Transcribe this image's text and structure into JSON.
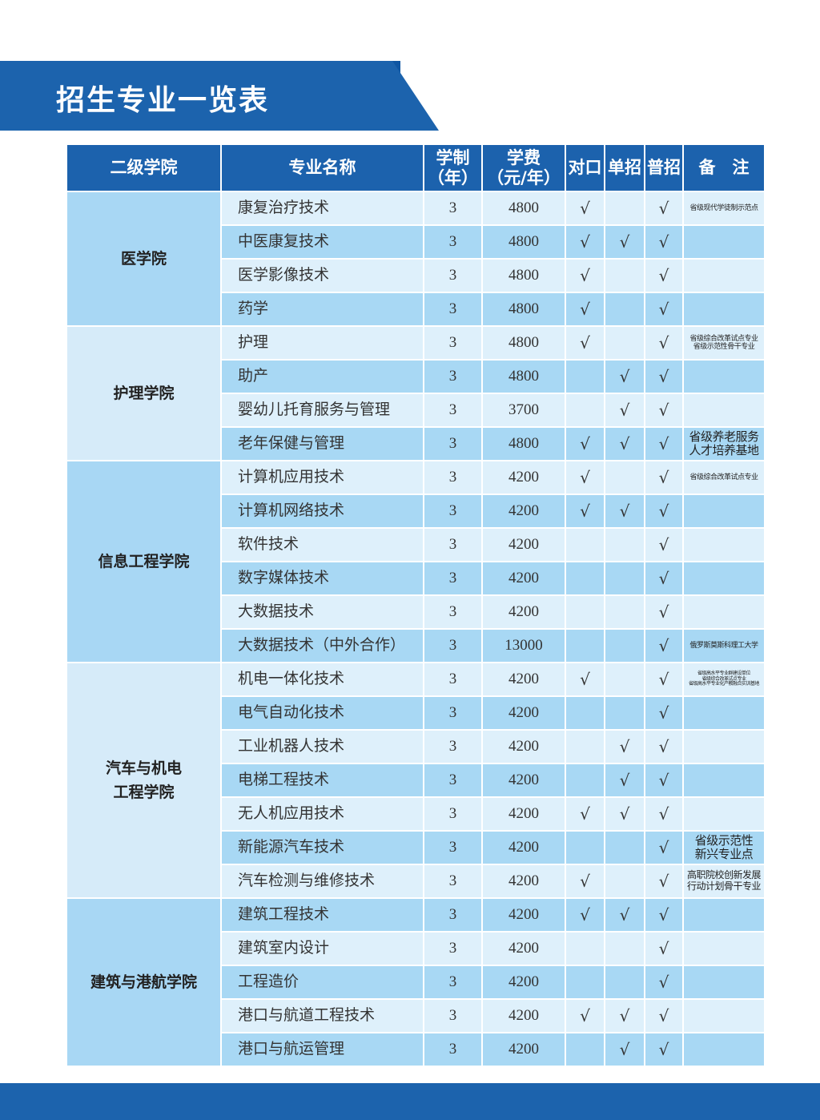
{
  "header": {
    "title": "招生专业一览表"
  },
  "table": {
    "columns": [
      [
        "二级学院"
      ],
      [
        "专业名称"
      ],
      [
        "学制",
        "（年）"
      ],
      [
        "学费",
        "（元/年）"
      ],
      [
        "对口"
      ],
      [
        "单招"
      ],
      [
        "普招"
      ],
      [
        "备　注"
      ]
    ],
    "groups": [
      {
        "college": [
          "医学院"
        ],
        "rows": [
          [
            "康复治疗技术",
            3,
            4800,
            "√",
            null,
            "√",
            [
              "省级现代学徒制示范点"
            ]
          ],
          [
            "中医康复技术",
            3,
            4800,
            "√",
            "√",
            "√",
            null
          ],
          [
            "医学影像技术",
            3,
            4800,
            "√",
            null,
            "√",
            null
          ],
          [
            "药学",
            3,
            4800,
            "√",
            null,
            "√",
            null
          ]
        ]
      },
      {
        "college": [
          "护理学院"
        ],
        "rows": [
          [
            "护理",
            3,
            4800,
            "√",
            null,
            "√",
            [
              "省级综合改革试点专业",
              "省级示范性骨干专业"
            ]
          ],
          [
            "助产",
            3,
            4800,
            null,
            "√",
            "√",
            null
          ],
          [
            "婴幼儿托育服务与管理",
            3,
            3700,
            null,
            "√",
            "√",
            null
          ],
          [
            "老年保健与管理",
            3,
            4800,
            "√",
            "√",
            "√",
            [
              "省级养老服务",
              "人才培养基地"
            ]
          ]
        ]
      },
      {
        "college": [
          "信息工程学院"
        ],
        "rows": [
          [
            "计算机应用技术",
            3,
            4200,
            "√",
            null,
            "√",
            [
              "省级综合改革试点专业"
            ]
          ],
          [
            "计算机网络技术",
            3,
            4200,
            "√",
            "√",
            "√",
            null
          ],
          [
            "软件技术",
            3,
            4200,
            null,
            null,
            "√",
            null
          ],
          [
            "数字媒体技术",
            3,
            4200,
            null,
            null,
            "√",
            null
          ],
          [
            "大数据技术",
            3,
            4200,
            null,
            null,
            "√",
            null
          ],
          [
            "大数据技术（中外合作）",
            3,
            13000,
            null,
            null,
            "√",
            [
              "俄罗斯莫斯科理工大学"
            ]
          ]
        ]
      },
      {
        "college": [
          "汽车与机电",
          "工程学院"
        ],
        "rows": [
          [
            "机电一体化技术",
            3,
            4200,
            "√",
            null,
            "√",
            [
              "省级高水平专业群建设单位",
              "省级综合改革试点专业",
              "省级高水平专业化产教融合实训基地"
            ]
          ],
          [
            "电气自动化技术",
            3,
            4200,
            null,
            null,
            "√",
            null
          ],
          [
            "工业机器人技术",
            3,
            4200,
            null,
            "√",
            "√",
            null
          ],
          [
            "电梯工程技术",
            3,
            4200,
            null,
            "√",
            "√",
            null
          ],
          [
            "无人机应用技术",
            3,
            4200,
            "√",
            "√",
            "√",
            null
          ],
          [
            "新能源汽车技术",
            3,
            4200,
            null,
            null,
            "√",
            [
              "省级示范性",
              "新兴专业点"
            ]
          ],
          [
            "汽车检测与维修技术",
            3,
            4200,
            "√",
            null,
            "√",
            [
              "高职院校创新发展",
              "行动计划骨干专业"
            ]
          ]
        ]
      },
      {
        "college": [
          "建筑与港航学院"
        ],
        "rows": [
          [
            "建筑工程技术",
            3,
            4200,
            "√",
            "√",
            "√",
            null
          ],
          [
            "建筑室内设计",
            3,
            4200,
            null,
            null,
            "√",
            null
          ],
          [
            "工程造价",
            3,
            4200,
            null,
            null,
            "√",
            null
          ],
          [
            "港口与航道工程技术",
            3,
            4200,
            "√",
            "√",
            "√",
            null
          ],
          [
            "港口与航运管理",
            3,
            4200,
            null,
            "√",
            "√",
            null
          ]
        ]
      }
    ]
  }
}
